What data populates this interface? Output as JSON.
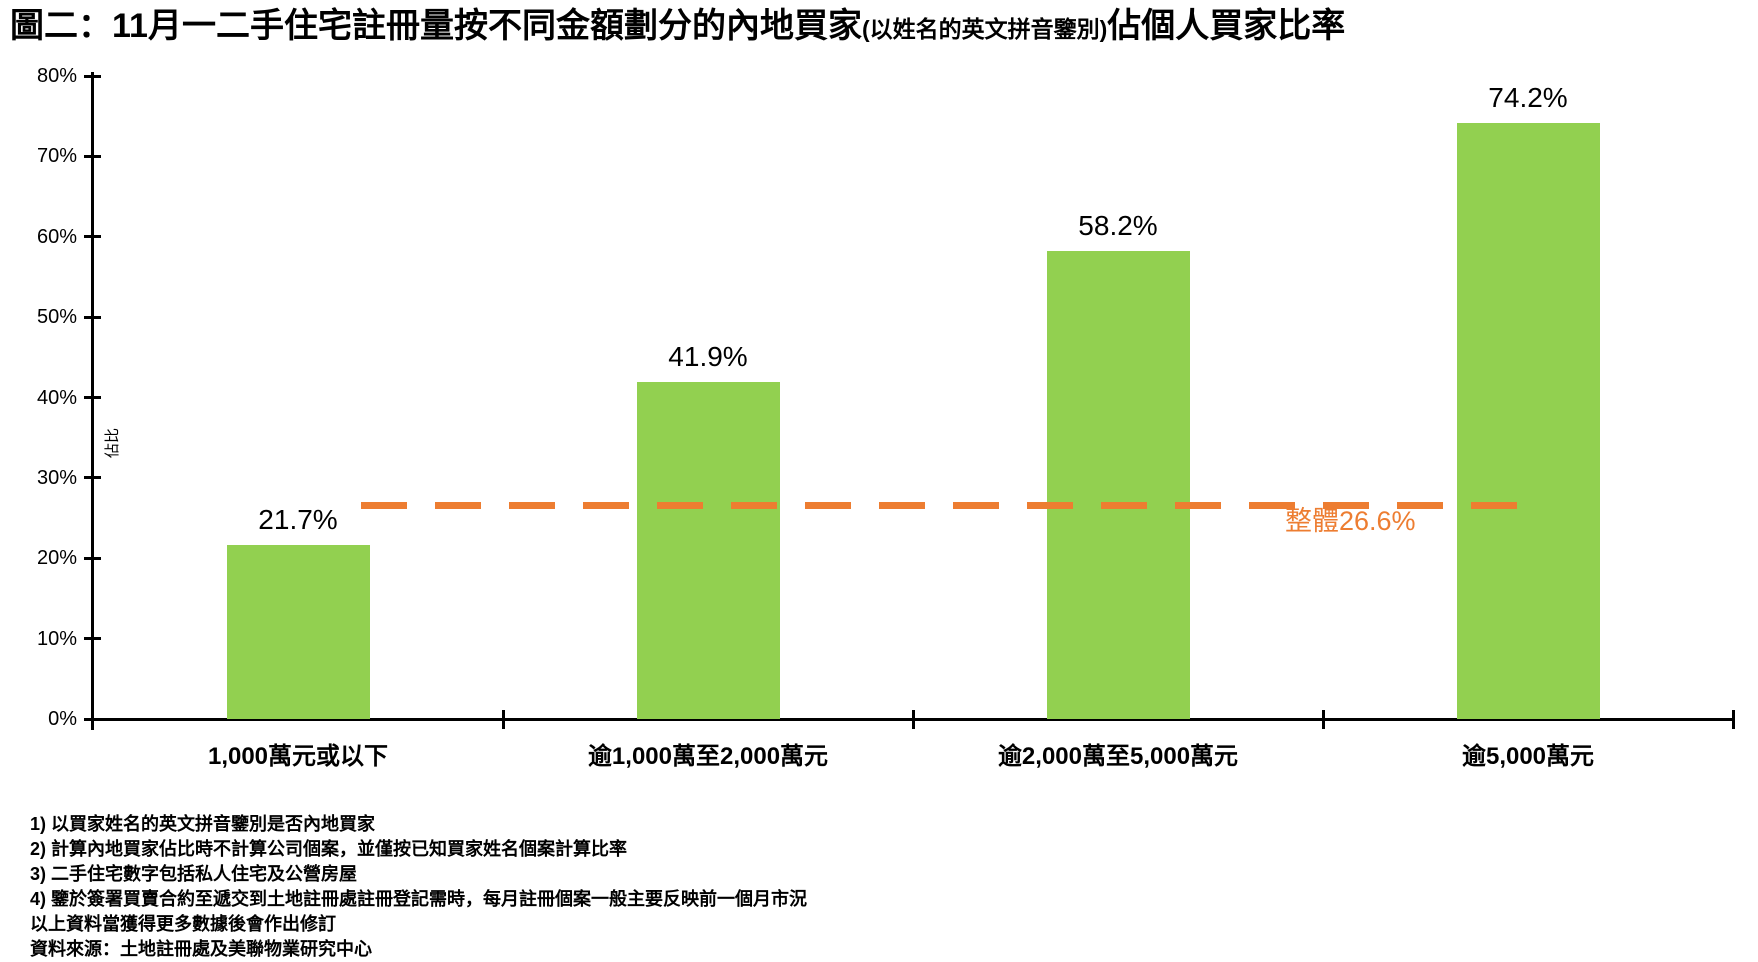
{
  "title": {
    "main_prefix": "圖二：11月一二手住宅註冊量按不同金額劃分的內地買家",
    "paren": "(以姓名的英文拼音鑒別)",
    "main_suffix": "佔個人買家比率"
  },
  "chart_data": {
    "type": "bar",
    "categories": [
      "1,000萬元或以下",
      "逾1,000萬至2,000萬元",
      "逾2,000萬至5,000萬元",
      "逾5,000萬元"
    ],
    "values": [
      21.7,
      41.9,
      58.2,
      74.2
    ],
    "value_labels": [
      "21.7%",
      "41.9%",
      "58.2%",
      "74.2%"
    ],
    "title": "11月一二手住宅註冊量按不同金額劃分的內地買家佔個人買家比率",
    "xlabel": "",
    "ylabel": "佔比",
    "ylim": [
      0,
      80
    ],
    "yticks": [
      "0%",
      "10%",
      "20%",
      "30%",
      "40%",
      "50%",
      "60%",
      "70%",
      "80%"
    ],
    "grid": false,
    "legend": false,
    "reference_line": {
      "value": 26.6,
      "label": "整體26.6%"
    },
    "colors": {
      "bar": "#92D050",
      "reference": "#ED7D31",
      "axis": "#000000",
      "value_label": "#000000"
    }
  },
  "footnotes": [
    "1) 以買家姓名的英文拼音鑒別是否內地買家",
    "2) 計算內地買家佔比時不計算公司個案，並僅按已知買家姓名個案計算比率",
    "3) 二手住宅數字包括私人住宅及公營房屋",
    "4) 鑒於簽署買賣合約至遞交到土地註冊處註冊登記需時，每月註冊個案一般主要反映前一個月市況",
    "以上資料當獲得更多數據後會作出修訂",
    "資料來源：土地註冊處及美聯物業研究中心"
  ]
}
